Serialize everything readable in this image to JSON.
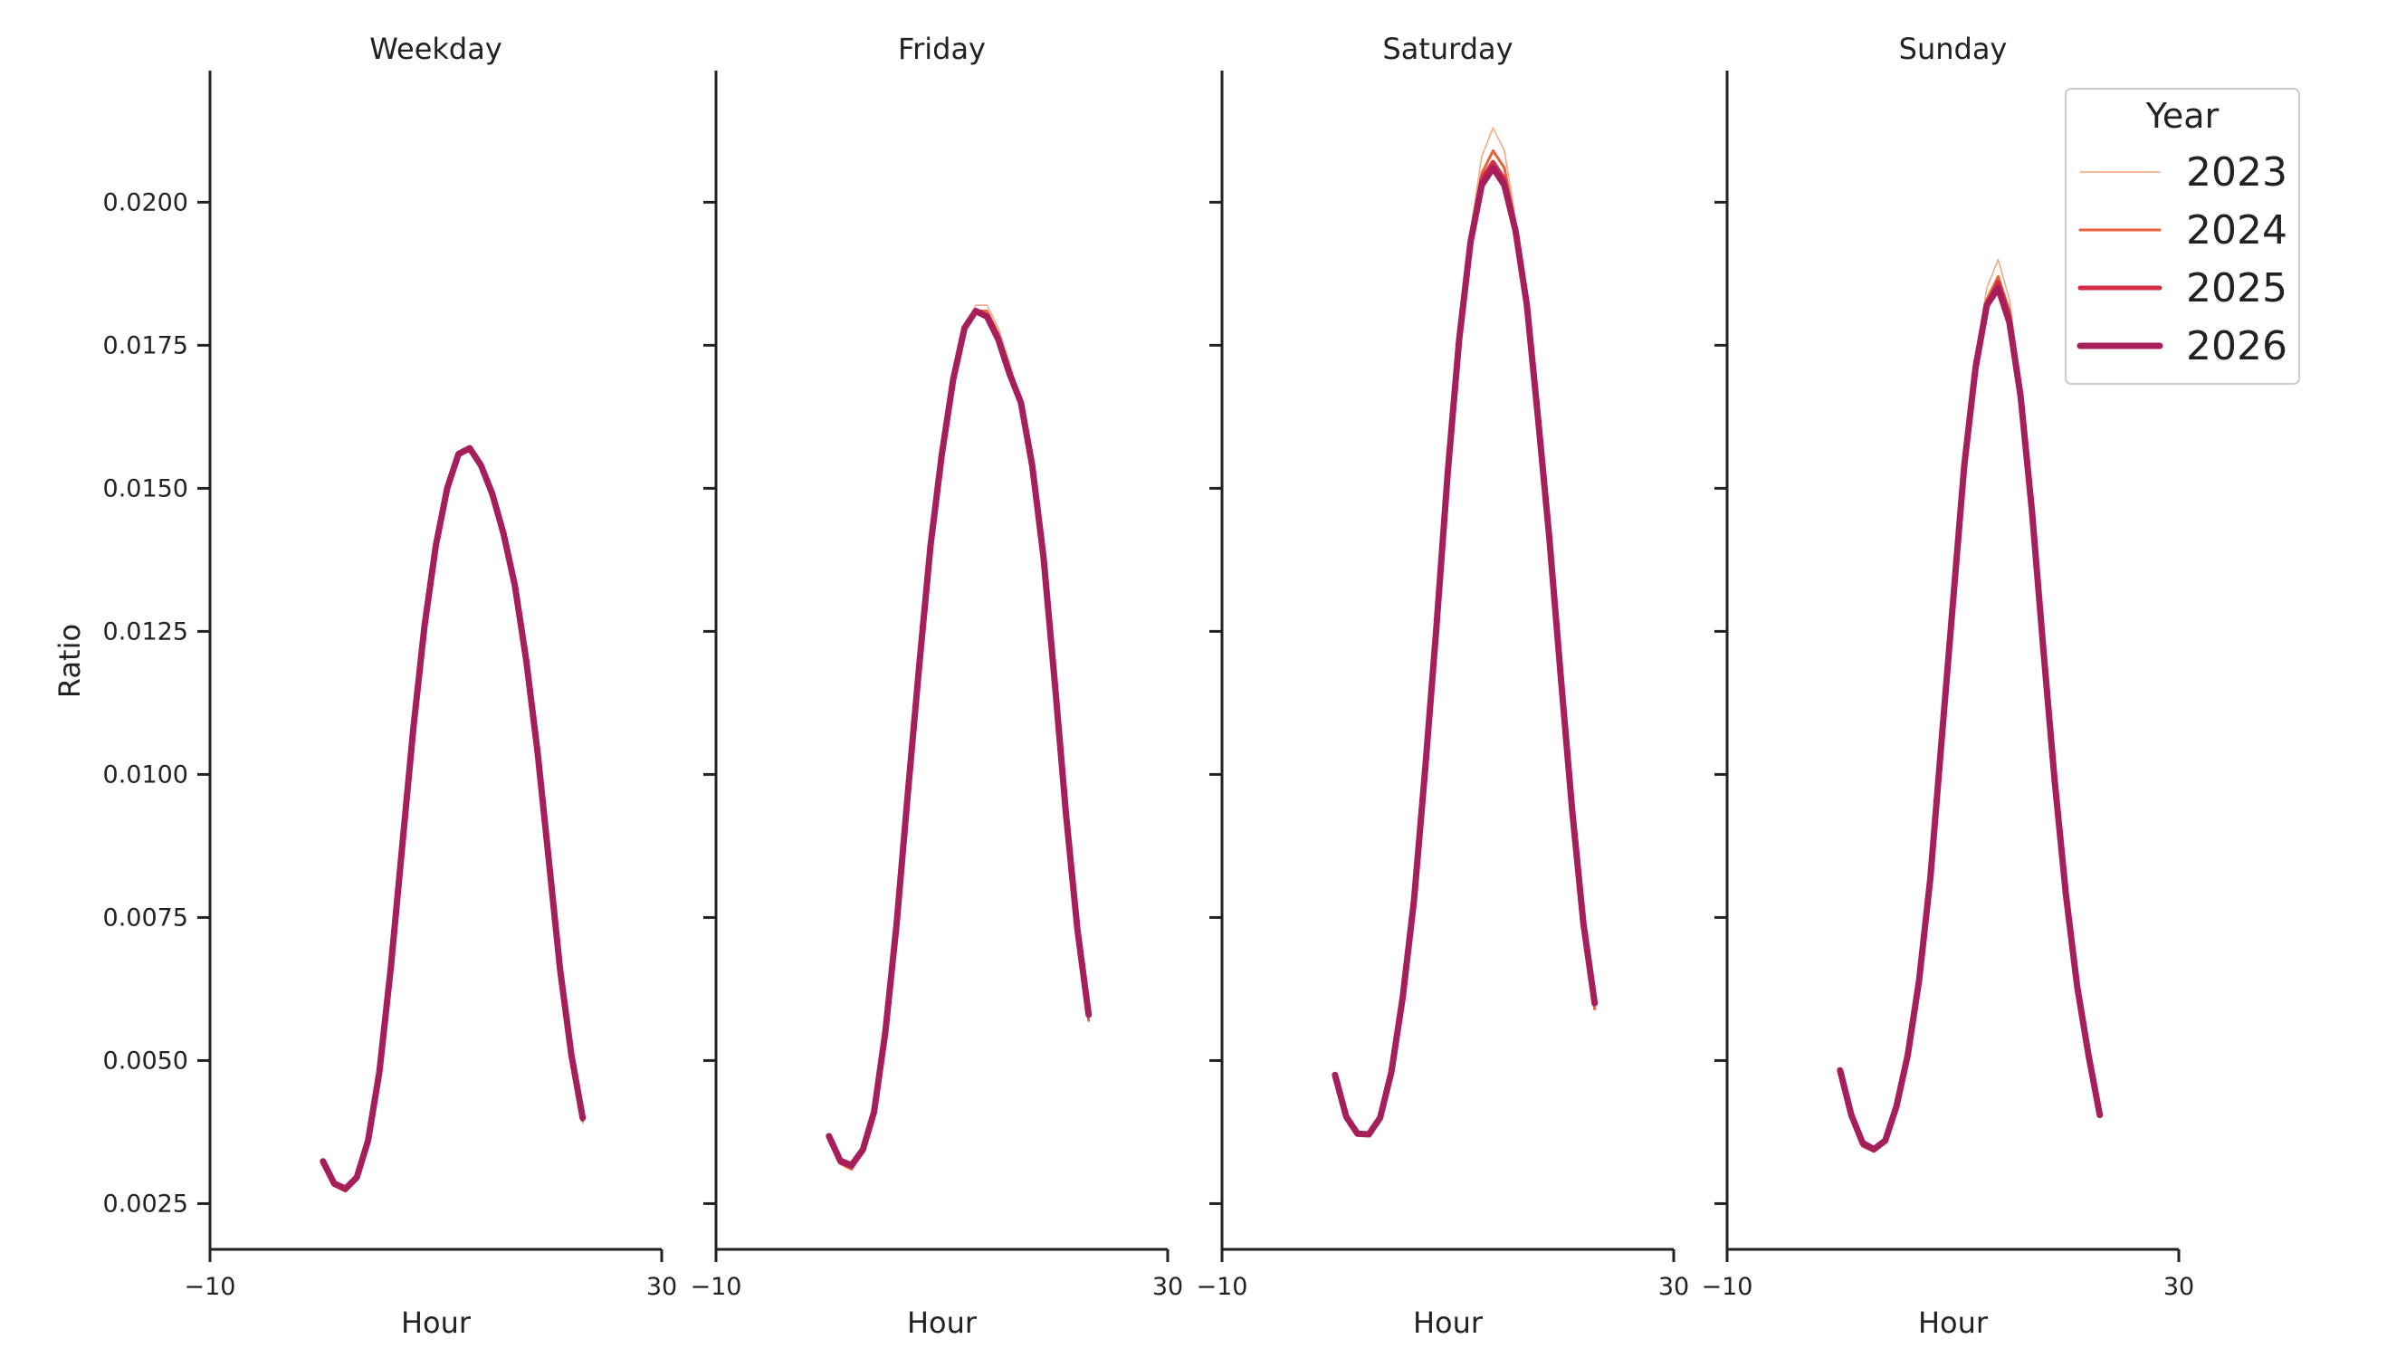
{
  "chart_data": {
    "type": "line",
    "ylabel": "Ratio",
    "ylim": [
      0.0017,
      0.0223
    ],
    "yticks": [
      0.0025,
      0.005,
      0.0075,
      0.01,
      0.0125,
      0.015,
      0.0175,
      0.02
    ],
    "ytick_labels": [
      "0.0025",
      "0.0050",
      "0.0075",
      "0.0100",
      "0.0125",
      "0.0150",
      "0.0175",
      "0.0200"
    ],
    "xlim": [
      -10,
      30
    ],
    "xticks": [
      -10,
      30
    ],
    "xtick_labels": [
      "−10",
      "30"
    ],
    "legend": {
      "title": "Year",
      "placement": "top-right",
      "entries": [
        "2023",
        "2024",
        "2025",
        "2026"
      ]
    },
    "series_styles": [
      {
        "name": "2023",
        "color": "#f4a582",
        "width": 1.5
      },
      {
        "name": "2024",
        "color": "#e8623a",
        "width": 3
      },
      {
        "name": "2025",
        "color": "#d42d45",
        "width": 5
      },
      {
        "name": "2026",
        "color": "#a61e5a",
        "width": 7
      }
    ],
    "panels": [
      {
        "title": "Weekday",
        "xlabel": "Hour",
        "x": [
          0,
          1,
          2,
          3,
          4,
          5,
          6,
          7,
          8,
          9,
          10,
          11,
          12,
          13,
          14,
          15,
          16,
          17,
          18,
          19,
          20,
          21,
          22,
          23
        ],
        "series": [
          {
            "name": "2023",
            "values": [
              0.0032,
              0.0028,
              0.0027,
              0.0029,
              0.0036,
              0.0048,
              0.0066,
              0.0087,
              0.0108,
              0.0126,
              0.014,
              0.015,
              0.0156,
              0.0157,
              0.0154,
              0.0149,
              0.0142,
              0.0133,
              0.012,
              0.0104,
              0.0085,
              0.0066,
              0.0051,
              0.0039
            ]
          },
          {
            "name": "2024",
            "values": [
              0.0032,
              0.00282,
              0.00272,
              0.00292,
              0.0036,
              0.0048,
              0.0066,
              0.0087,
              0.0108,
              0.0126,
              0.014,
              0.015,
              0.0156,
              0.0157,
              0.0154,
              0.0149,
              0.0142,
              0.0133,
              0.012,
              0.0104,
              0.0085,
              0.0066,
              0.0051,
              0.00395
            ]
          },
          {
            "name": "2025",
            "values": [
              0.0032,
              0.00283,
              0.00274,
              0.00294,
              0.0036,
              0.0048,
              0.0066,
              0.0087,
              0.0108,
              0.0126,
              0.014,
              0.015,
              0.0156,
              0.0157,
              0.0154,
              0.0149,
              0.0142,
              0.0133,
              0.012,
              0.0104,
              0.0085,
              0.0066,
              0.0051,
              0.00397
            ]
          },
          {
            "name": "2026",
            "values": [
              0.00324,
              0.00285,
              0.00276,
              0.00296,
              0.0036,
              0.0048,
              0.0066,
              0.0087,
              0.0108,
              0.0126,
              0.014,
              0.015,
              0.0156,
              0.0157,
              0.0154,
              0.0149,
              0.0142,
              0.0133,
              0.012,
              0.0104,
              0.0085,
              0.0066,
              0.0051,
              0.004
            ]
          }
        ]
      },
      {
        "title": "Friday",
        "xlabel": "Hour",
        "x": [
          0,
          1,
          2,
          3,
          4,
          5,
          6,
          7,
          8,
          9,
          10,
          11,
          12,
          13,
          14,
          15,
          16,
          17,
          18,
          19,
          20,
          21,
          22,
          23
        ],
        "series": [
          {
            "name": "2023",
            "values": [
              0.0036,
              0.0032,
              0.0031,
              0.0034,
              0.0041,
              0.0055,
              0.0074,
              0.0097,
              0.0119,
              0.014,
              0.0156,
              0.0169,
              0.0178,
              0.0182,
              0.0182,
              0.0178,
              0.0172,
              0.0165,
              0.0154,
              0.0138,
              0.0116,
              0.0093,
              0.0073,
              0.0057
            ]
          },
          {
            "name": "2024",
            "values": [
              0.0036,
              0.0032,
              0.0031,
              0.0034,
              0.0041,
              0.0055,
              0.0074,
              0.0097,
              0.0119,
              0.014,
              0.0156,
              0.0169,
              0.0178,
              0.0181,
              0.0181,
              0.0177,
              0.0171,
              0.0165,
              0.0154,
              0.0138,
              0.0116,
              0.0093,
              0.0073,
              0.0057
            ]
          },
          {
            "name": "2025",
            "values": [
              0.00365,
              0.00322,
              0.00315,
              0.00342,
              0.0041,
              0.0055,
              0.0074,
              0.0097,
              0.0119,
              0.014,
              0.0156,
              0.0169,
              0.0178,
              0.0181,
              0.018,
              0.0176,
              0.017,
              0.0165,
              0.0154,
              0.0138,
              0.0116,
              0.0093,
              0.0073,
              0.0058
            ]
          },
          {
            "name": "2026",
            "values": [
              0.00368,
              0.00325,
              0.00317,
              0.00344,
              0.0041,
              0.0055,
              0.0074,
              0.0097,
              0.0119,
              0.014,
              0.0156,
              0.0169,
              0.0178,
              0.0181,
              0.018,
              0.0176,
              0.017,
              0.0165,
              0.0154,
              0.0138,
              0.0116,
              0.0093,
              0.0073,
              0.0058
            ]
          }
        ]
      },
      {
        "title": "Saturday",
        "xlabel": "Hour",
        "x": [
          0,
          1,
          2,
          3,
          4,
          5,
          6,
          7,
          8,
          9,
          10,
          11,
          12,
          13,
          14,
          15,
          16,
          17,
          18,
          19,
          20,
          21,
          22,
          23
        ],
        "series": [
          {
            "name": "2023",
            "values": [
              0.0047,
              0.004,
              0.0037,
              0.0037,
              0.004,
              0.0048,
              0.0061,
              0.0078,
              0.0101,
              0.0126,
              0.0153,
              0.0176,
              0.0195,
              0.0208,
              0.0213,
              0.0209,
              0.0197,
              0.0182,
              0.0162,
              0.0141,
              0.0117,
              0.0094,
              0.0074,
              0.0059
            ]
          },
          {
            "name": "2024",
            "values": [
              0.0047,
              0.004,
              0.0037,
              0.0037,
              0.004,
              0.0048,
              0.0061,
              0.0078,
              0.0101,
              0.0126,
              0.0153,
              0.0176,
              0.0194,
              0.0205,
              0.0209,
              0.0206,
              0.0196,
              0.0182,
              0.0162,
              0.0141,
              0.0117,
              0.0094,
              0.0074,
              0.0059
            ]
          },
          {
            "name": "2025",
            "values": [
              0.00472,
              0.004,
              0.00371,
              0.0037,
              0.004,
              0.0048,
              0.0061,
              0.0078,
              0.0101,
              0.0126,
              0.0153,
              0.0176,
              0.0193,
              0.0204,
              0.0207,
              0.0204,
              0.0195,
              0.0182,
              0.0162,
              0.0141,
              0.0117,
              0.0094,
              0.0074,
              0.006
            ]
          },
          {
            "name": "2026",
            "values": [
              0.00475,
              0.00402,
              0.00372,
              0.00371,
              0.004,
              0.0048,
              0.0061,
              0.0078,
              0.0101,
              0.0126,
              0.0153,
              0.0176,
              0.0193,
              0.0203,
              0.0206,
              0.0203,
              0.0195,
              0.0182,
              0.0162,
              0.0141,
              0.0117,
              0.0094,
              0.0074,
              0.006
            ]
          }
        ]
      },
      {
        "title": "Sunday",
        "xlabel": "Hour",
        "x": [
          0,
          1,
          2,
          3,
          4,
          5,
          6,
          7,
          8,
          9,
          10,
          11,
          12,
          13,
          14,
          15,
          16,
          17,
          18,
          19,
          20,
          21,
          22,
          23
        ],
        "series": [
          {
            "name": "2023",
            "values": [
              0.0048,
              0.004,
              0.0035,
              0.0034,
              0.0036,
              0.0042,
              0.0051,
              0.0064,
              0.0082,
              0.0106,
              0.013,
              0.0154,
              0.0173,
              0.0185,
              0.019,
              0.0183,
              0.0168,
              0.0146,
              0.0122,
              0.0099,
              0.0079,
              0.0063,
              0.005,
              0.0041
            ]
          },
          {
            "name": "2024",
            "values": [
              0.0048,
              0.004,
              0.0035,
              0.00341,
              0.0036,
              0.0042,
              0.0051,
              0.0064,
              0.0082,
              0.0106,
              0.013,
              0.0154,
              0.0172,
              0.0183,
              0.0187,
              0.0181,
              0.0167,
              0.0146,
              0.0122,
              0.0099,
              0.0079,
              0.0063,
              0.0051,
              0.0041
            ]
          },
          {
            "name": "2025",
            "values": [
              0.00482,
              0.00402,
              0.00353,
              0.00343,
              0.0036,
              0.0042,
              0.0051,
              0.0064,
              0.0082,
              0.0106,
              0.013,
              0.0154,
              0.0172,
              0.0182,
              0.0186,
              0.018,
              0.0167,
              0.0146,
              0.0122,
              0.0099,
              0.0079,
              0.0063,
              0.0051,
              0.00405
            ]
          },
          {
            "name": "2026",
            "values": [
              0.00483,
              0.00405,
              0.00356,
              0.00345,
              0.0036,
              0.0042,
              0.0051,
              0.0064,
              0.0082,
              0.0106,
              0.013,
              0.0154,
              0.0171,
              0.0182,
              0.0185,
              0.0179,
              0.0166,
              0.0146,
              0.0122,
              0.0099,
              0.0079,
              0.0063,
              0.0051,
              0.00405
            ]
          }
        ]
      }
    ]
  }
}
